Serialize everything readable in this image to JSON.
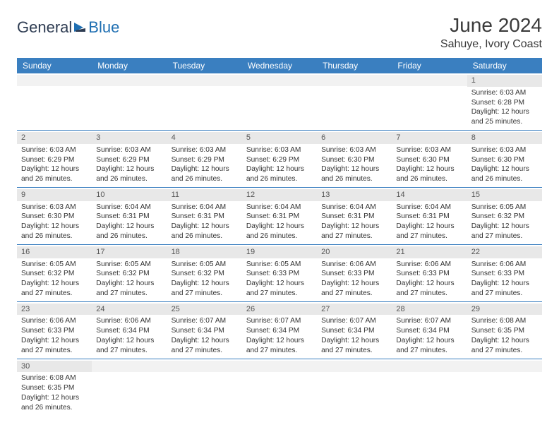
{
  "logo": {
    "general": "General",
    "blue": "Blue"
  },
  "header": {
    "month": "June 2024",
    "location": "Sahuye, Ivory Coast"
  },
  "colors": {
    "header_bg": "#3a7fc0",
    "header_text": "#ffffff",
    "daynum_bg": "#e8e8e8",
    "border": "#3a7fc0",
    "text": "#333333"
  },
  "daysOfWeek": [
    "Sunday",
    "Monday",
    "Tuesday",
    "Wednesday",
    "Thursday",
    "Friday",
    "Saturday"
  ],
  "weeks": [
    [
      null,
      null,
      null,
      null,
      null,
      null,
      {
        "n": "1",
        "sr": "Sunrise: 6:03 AM",
        "ss": "Sunset: 6:28 PM",
        "dl1": "Daylight: 12 hours",
        "dl2": "and 25 minutes."
      }
    ],
    [
      {
        "n": "2",
        "sr": "Sunrise: 6:03 AM",
        "ss": "Sunset: 6:29 PM",
        "dl1": "Daylight: 12 hours",
        "dl2": "and 26 minutes."
      },
      {
        "n": "3",
        "sr": "Sunrise: 6:03 AM",
        "ss": "Sunset: 6:29 PM",
        "dl1": "Daylight: 12 hours",
        "dl2": "and 26 minutes."
      },
      {
        "n": "4",
        "sr": "Sunrise: 6:03 AM",
        "ss": "Sunset: 6:29 PM",
        "dl1": "Daylight: 12 hours",
        "dl2": "and 26 minutes."
      },
      {
        "n": "5",
        "sr": "Sunrise: 6:03 AM",
        "ss": "Sunset: 6:29 PM",
        "dl1": "Daylight: 12 hours",
        "dl2": "and 26 minutes."
      },
      {
        "n": "6",
        "sr": "Sunrise: 6:03 AM",
        "ss": "Sunset: 6:30 PM",
        "dl1": "Daylight: 12 hours",
        "dl2": "and 26 minutes."
      },
      {
        "n": "7",
        "sr": "Sunrise: 6:03 AM",
        "ss": "Sunset: 6:30 PM",
        "dl1": "Daylight: 12 hours",
        "dl2": "and 26 minutes."
      },
      {
        "n": "8",
        "sr": "Sunrise: 6:03 AM",
        "ss": "Sunset: 6:30 PM",
        "dl1": "Daylight: 12 hours",
        "dl2": "and 26 minutes."
      }
    ],
    [
      {
        "n": "9",
        "sr": "Sunrise: 6:03 AM",
        "ss": "Sunset: 6:30 PM",
        "dl1": "Daylight: 12 hours",
        "dl2": "and 26 minutes."
      },
      {
        "n": "10",
        "sr": "Sunrise: 6:04 AM",
        "ss": "Sunset: 6:31 PM",
        "dl1": "Daylight: 12 hours",
        "dl2": "and 26 minutes."
      },
      {
        "n": "11",
        "sr": "Sunrise: 6:04 AM",
        "ss": "Sunset: 6:31 PM",
        "dl1": "Daylight: 12 hours",
        "dl2": "and 26 minutes."
      },
      {
        "n": "12",
        "sr": "Sunrise: 6:04 AM",
        "ss": "Sunset: 6:31 PM",
        "dl1": "Daylight: 12 hours",
        "dl2": "and 26 minutes."
      },
      {
        "n": "13",
        "sr": "Sunrise: 6:04 AM",
        "ss": "Sunset: 6:31 PM",
        "dl1": "Daylight: 12 hours",
        "dl2": "and 27 minutes."
      },
      {
        "n": "14",
        "sr": "Sunrise: 6:04 AM",
        "ss": "Sunset: 6:31 PM",
        "dl1": "Daylight: 12 hours",
        "dl2": "and 27 minutes."
      },
      {
        "n": "15",
        "sr": "Sunrise: 6:05 AM",
        "ss": "Sunset: 6:32 PM",
        "dl1": "Daylight: 12 hours",
        "dl2": "and 27 minutes."
      }
    ],
    [
      {
        "n": "16",
        "sr": "Sunrise: 6:05 AM",
        "ss": "Sunset: 6:32 PM",
        "dl1": "Daylight: 12 hours",
        "dl2": "and 27 minutes."
      },
      {
        "n": "17",
        "sr": "Sunrise: 6:05 AM",
        "ss": "Sunset: 6:32 PM",
        "dl1": "Daylight: 12 hours",
        "dl2": "and 27 minutes."
      },
      {
        "n": "18",
        "sr": "Sunrise: 6:05 AM",
        "ss": "Sunset: 6:32 PM",
        "dl1": "Daylight: 12 hours",
        "dl2": "and 27 minutes."
      },
      {
        "n": "19",
        "sr": "Sunrise: 6:05 AM",
        "ss": "Sunset: 6:33 PM",
        "dl1": "Daylight: 12 hours",
        "dl2": "and 27 minutes."
      },
      {
        "n": "20",
        "sr": "Sunrise: 6:06 AM",
        "ss": "Sunset: 6:33 PM",
        "dl1": "Daylight: 12 hours",
        "dl2": "and 27 minutes."
      },
      {
        "n": "21",
        "sr": "Sunrise: 6:06 AM",
        "ss": "Sunset: 6:33 PM",
        "dl1": "Daylight: 12 hours",
        "dl2": "and 27 minutes."
      },
      {
        "n": "22",
        "sr": "Sunrise: 6:06 AM",
        "ss": "Sunset: 6:33 PM",
        "dl1": "Daylight: 12 hours",
        "dl2": "and 27 minutes."
      }
    ],
    [
      {
        "n": "23",
        "sr": "Sunrise: 6:06 AM",
        "ss": "Sunset: 6:33 PM",
        "dl1": "Daylight: 12 hours",
        "dl2": "and 27 minutes."
      },
      {
        "n": "24",
        "sr": "Sunrise: 6:06 AM",
        "ss": "Sunset: 6:34 PM",
        "dl1": "Daylight: 12 hours",
        "dl2": "and 27 minutes."
      },
      {
        "n": "25",
        "sr": "Sunrise: 6:07 AM",
        "ss": "Sunset: 6:34 PM",
        "dl1": "Daylight: 12 hours",
        "dl2": "and 27 minutes."
      },
      {
        "n": "26",
        "sr": "Sunrise: 6:07 AM",
        "ss": "Sunset: 6:34 PM",
        "dl1": "Daylight: 12 hours",
        "dl2": "and 27 minutes."
      },
      {
        "n": "27",
        "sr": "Sunrise: 6:07 AM",
        "ss": "Sunset: 6:34 PM",
        "dl1": "Daylight: 12 hours",
        "dl2": "and 27 minutes."
      },
      {
        "n": "28",
        "sr": "Sunrise: 6:07 AM",
        "ss": "Sunset: 6:34 PM",
        "dl1": "Daylight: 12 hours",
        "dl2": "and 27 minutes."
      },
      {
        "n": "29",
        "sr": "Sunrise: 6:08 AM",
        "ss": "Sunset: 6:35 PM",
        "dl1": "Daylight: 12 hours",
        "dl2": "and 27 minutes."
      }
    ],
    [
      {
        "n": "30",
        "sr": "Sunrise: 6:08 AM",
        "ss": "Sunset: 6:35 PM",
        "dl1": "Daylight: 12 hours",
        "dl2": "and 26 minutes."
      },
      null,
      null,
      null,
      null,
      null,
      null
    ]
  ]
}
